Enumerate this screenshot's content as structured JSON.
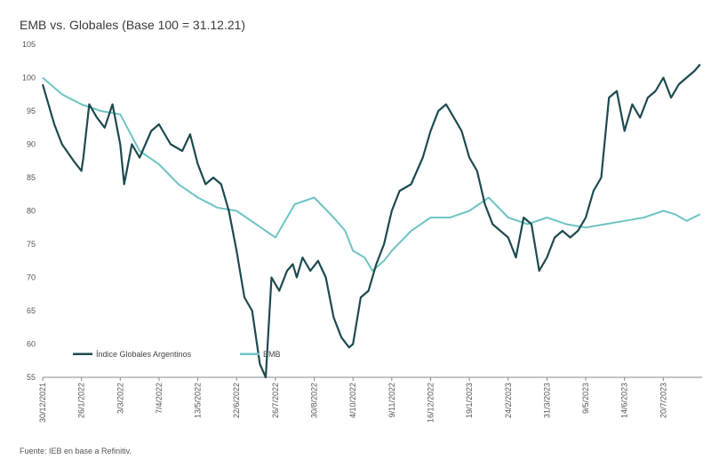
{
  "chart_data": {
    "type": "line",
    "title": "EMB vs. Globales (Base 100 = 31.12.21)",
    "source": "Fuente: IEB en base a Refinitiv.",
    "ylim": [
      55,
      105
    ],
    "y_ticks": [
      55,
      60,
      65,
      70,
      75,
      80,
      85,
      90,
      95,
      100,
      105
    ],
    "x_tick_labels": [
      "30/12/2021",
      "26/1/2022",
      "3/3/2022",
      "7/4/2022",
      "13/5/2022",
      "22/6/2022",
      "26/7/2022",
      "30/8/2022",
      "4/10/2022",
      "9/11/2022",
      "16/12/2022",
      "19/1/2023",
      "24/2/2023",
      "31/3/2023",
      "9/5/2023",
      "14/6/2023",
      "20/7/2023"
    ],
    "x_range": [
      0,
      17
    ],
    "legend": "bottom-left",
    "series": [
      {
        "name": "Índice Globales Argentinos",
        "color": "#1d4a4f",
        "x": [
          0,
          0.3,
          0.5,
          0.8,
          1.0,
          1.05,
          1.2,
          1.4,
          1.6,
          1.8,
          2.0,
          2.1,
          2.3,
          2.5,
          2.8,
          3.0,
          3.3,
          3.6,
          3.8,
          4.0,
          4.2,
          4.4,
          4.6,
          4.8,
          5.0,
          5.2,
          5.4,
          5.6,
          5.75,
          5.9,
          6.1,
          6.3,
          6.45,
          6.55,
          6.7,
          6.9,
          7.1,
          7.3,
          7.5,
          7.7,
          7.9,
          8.0,
          8.2,
          8.4,
          8.6,
          8.8,
          9.0,
          9.2,
          9.5,
          9.8,
          10.0,
          10.2,
          10.4,
          10.6,
          10.8,
          11.0,
          11.2,
          11.4,
          11.6,
          11.8,
          12.0,
          12.2,
          12.4,
          12.6,
          12.8,
          13.0,
          13.2,
          13.4,
          13.6,
          13.8,
          14.0,
          14.2,
          14.4,
          14.6,
          14.8,
          15.0,
          15.2,
          15.4,
          15.6,
          15.8,
          16.0,
          16.2,
          16.4,
          16.6,
          16.8,
          16.95
        ],
        "values": [
          99,
          93,
          90,
          87.5,
          86,
          88,
          96,
          94,
          92.5,
          96,
          90,
          84,
          90,
          88,
          92,
          93,
          90,
          89,
          91.5,
          87,
          84,
          85,
          84,
          80,
          74,
          67,
          65,
          57,
          55,
          70,
          68,
          71,
          72,
          70,
          73,
          71,
          72.5,
          70,
          64,
          61,
          59.5,
          60,
          67,
          68,
          72,
          75,
          80,
          83,
          84,
          88,
          92,
          95,
          96,
          94,
          92,
          88,
          86,
          81,
          78,
          77,
          76,
          73,
          79,
          78,
          71,
          73,
          76,
          77,
          76,
          77,
          79,
          83,
          85,
          97,
          98,
          92,
          96,
          94,
          97,
          98,
          100,
          97,
          99,
          100,
          101,
          102
        ]
      },
      {
        "name": "EMB",
        "color": "#6fc4c4",
        "x": [
          0,
          0.5,
          1.0,
          1.5,
          2.0,
          2.5,
          3.0,
          3.5,
          4.0,
          4.5,
          5.0,
          5.5,
          6.0,
          6.5,
          7.0,
          7.5,
          7.8,
          8.0,
          8.3,
          8.5,
          8.8,
          9.0,
          9.5,
          10.0,
          10.5,
          11.0,
          11.5,
          12.0,
          12.5,
          13.0,
          13.5,
          14.0,
          14.5,
          15.0,
          15.5,
          16.0,
          16.3,
          16.6,
          16.95
        ],
        "values": [
          100,
          97.5,
          96,
          95,
          94.5,
          89,
          87,
          84,
          82,
          80.5,
          80,
          78,
          76,
          81,
          82,
          79,
          77,
          74,
          73,
          71,
          72.5,
          74,
          77,
          79,
          79,
          80,
          82,
          79,
          78,
          79,
          78,
          77.5,
          78,
          78.5,
          79,
          80,
          79.5,
          78.5,
          79.5
        ]
      }
    ]
  }
}
